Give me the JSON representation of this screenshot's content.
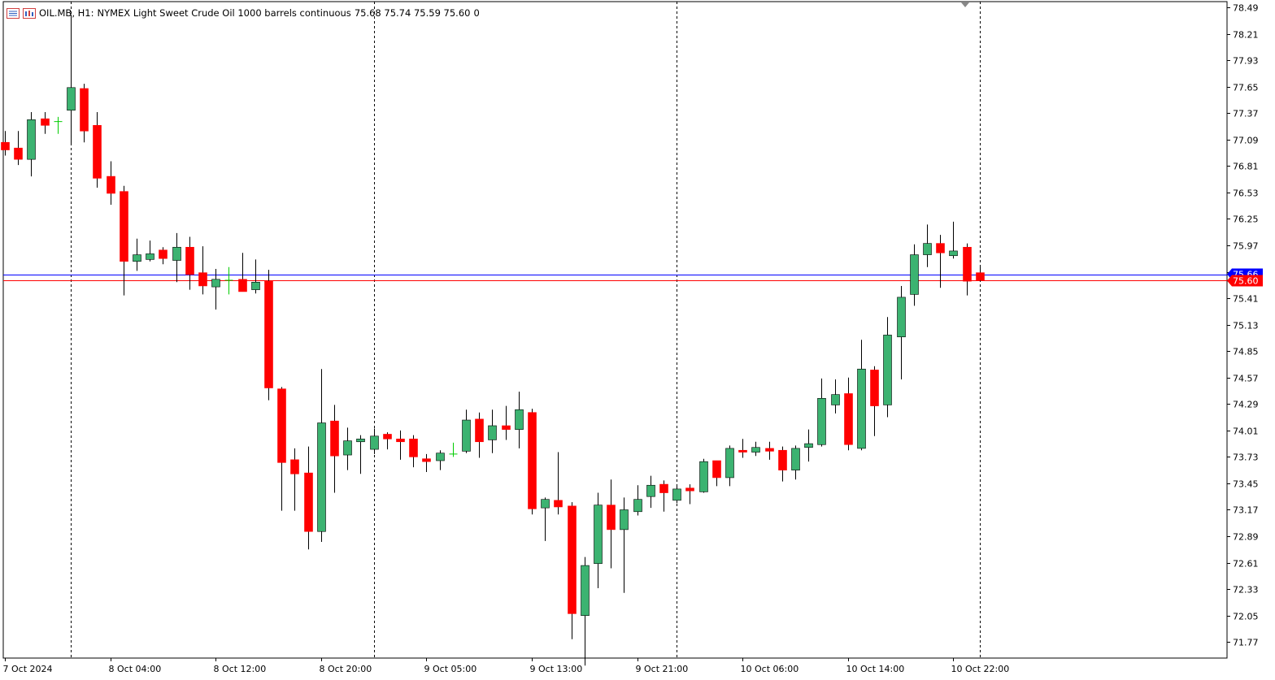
{
  "header": {
    "symbol": "OIL.MB, H1:",
    "description": "NYMEX Light Sweet Crude Oil 1000 barrels continuous",
    "ohlc": "75.68 75.74 75.59 75.60",
    "tick_volume": "0",
    "icons": [
      "chart-list-icon",
      "chart-window-icon"
    ]
  },
  "colors": {
    "bull": "#3cb371",
    "bear": "#ff0000",
    "doji": "#00cc00",
    "ask_line": "#0000ff",
    "bid_line": "#ff0000",
    "grid_divider": "#000000",
    "background": "#ffffff"
  },
  "chart_data": {
    "type": "candlestick",
    "timeframe": "H1",
    "title": "OIL.MB, H1:  NYMEX Light Sweet Crude Oil 1000 barrels continuous",
    "ylim": [
      71.6,
      78.55
    ],
    "y_ticks": [
      "78.49",
      "78.21",
      "77.93",
      "77.65",
      "77.37",
      "77.09",
      "76.81",
      "76.53",
      "76.25",
      "75.97",
      "75.69",
      "75.41",
      "75.13",
      "74.85",
      "74.57",
      "74.29",
      "74.01",
      "73.73",
      "73.45",
      "73.17",
      "72.89",
      "72.61",
      "72.33",
      "72.05",
      "71.77"
    ],
    "x_labels": [
      {
        "bar": 0,
        "text": "7 Oct 2024"
      },
      {
        "bar": 8,
        "text": "8 Oct 04:00"
      },
      {
        "bar": 16,
        "text": "8 Oct 12:00"
      },
      {
        "bar": 24,
        "text": "8 Oct 20:00"
      },
      {
        "bar": 32,
        "text": "9 Oct 05:00"
      },
      {
        "bar": 40,
        "text": "9 Oct 13:00"
      },
      {
        "bar": 48,
        "text": "9 Oct 21:00"
      },
      {
        "bar": 56,
        "text": "10 Oct 06:00"
      },
      {
        "bar": 64,
        "text": "10 Oct 14:00"
      },
      {
        "bar": 72,
        "text": "10 Oct 22:00"
      }
    ],
    "day_separators": [
      5,
      28,
      51,
      74
    ],
    "bid_price": 75.6,
    "bid_label": "75.60",
    "ask_price": 75.66,
    "ask_label": "75.66",
    "candles": [
      {
        "o": 77.06,
        "h": 77.18,
        "l": 76.92,
        "c": 76.98
      },
      {
        "o": 77.0,
        "h": 77.18,
        "l": 76.82,
        "c": 76.88
      },
      {
        "o": 76.88,
        "h": 77.38,
        "l": 76.7,
        "c": 77.3
      },
      {
        "o": 77.31,
        "h": 77.38,
        "l": 77.15,
        "c": 77.24
      },
      {
        "o": 77.28,
        "h": 77.33,
        "l": 77.15,
        "c": 77.28
      },
      {
        "o": 77.4,
        "h": 78.41,
        "l": 77.04,
        "c": 77.64
      },
      {
        "o": 77.63,
        "h": 77.68,
        "l": 77.06,
        "c": 77.18
      },
      {
        "o": 77.24,
        "h": 77.38,
        "l": 76.58,
        "c": 76.68
      },
      {
        "o": 76.7,
        "h": 76.86,
        "l": 76.4,
        "c": 76.52
      },
      {
        "o": 76.54,
        "h": 76.6,
        "l": 75.44,
        "c": 75.8
      },
      {
        "o": 75.8,
        "h": 76.04,
        "l": 75.7,
        "c": 75.87
      },
      {
        "o": 75.82,
        "h": 76.02,
        "l": 75.8,
        "c": 75.88
      },
      {
        "o": 75.92,
        "h": 75.95,
        "l": 75.77,
        "c": 75.83
      },
      {
        "o": 75.81,
        "h": 76.1,
        "l": 75.58,
        "c": 75.95
      },
      {
        "o": 75.95,
        "h": 76.06,
        "l": 75.5,
        "c": 75.66
      },
      {
        "o": 75.68,
        "h": 75.96,
        "l": 75.45,
        "c": 75.54
      },
      {
        "o": 75.53,
        "h": 75.72,
        "l": 75.29,
        "c": 75.61
      },
      {
        "o": 75.6,
        "h": 75.74,
        "l": 75.45,
        "c": 75.6
      },
      {
        "o": 75.61,
        "h": 75.89,
        "l": 75.48,
        "c": 75.48
      },
      {
        "o": 75.5,
        "h": 75.82,
        "l": 75.46,
        "c": 75.58
      },
      {
        "o": 75.59,
        "h": 75.71,
        "l": 74.33,
        "c": 74.46
      },
      {
        "o": 74.45,
        "h": 74.47,
        "l": 73.16,
        "c": 73.67
      },
      {
        "o": 73.7,
        "h": 73.82,
        "l": 73.16,
        "c": 73.55
      },
      {
        "o": 73.56,
        "h": 73.84,
        "l": 72.75,
        "c": 72.94
      },
      {
        "o": 72.94,
        "h": 74.66,
        "l": 72.83,
        "c": 74.09
      },
      {
        "o": 74.11,
        "h": 74.28,
        "l": 73.35,
        "c": 73.74
      },
      {
        "o": 73.75,
        "h": 74.04,
        "l": 73.59,
        "c": 73.9
      },
      {
        "o": 73.89,
        "h": 73.96,
        "l": 73.55,
        "c": 73.92
      },
      {
        "o": 73.81,
        "h": 74.03,
        "l": 73.76,
        "c": 73.95
      },
      {
        "o": 73.97,
        "h": 73.99,
        "l": 73.81,
        "c": 73.92
      },
      {
        "o": 73.92,
        "h": 74.01,
        "l": 73.7,
        "c": 73.89
      },
      {
        "o": 73.92,
        "h": 73.96,
        "l": 73.62,
        "c": 73.73
      },
      {
        "o": 73.71,
        "h": 73.76,
        "l": 73.57,
        "c": 73.68
      },
      {
        "o": 73.69,
        "h": 73.8,
        "l": 73.59,
        "c": 73.77
      },
      {
        "o": 73.76,
        "h": 73.88,
        "l": 73.73,
        "c": 73.76
      },
      {
        "o": 73.79,
        "h": 74.23,
        "l": 73.77,
        "c": 74.12
      },
      {
        "o": 74.13,
        "h": 74.2,
        "l": 73.72,
        "c": 73.89
      },
      {
        "o": 73.91,
        "h": 74.23,
        "l": 73.77,
        "c": 74.06
      },
      {
        "o": 74.06,
        "h": 74.27,
        "l": 73.91,
        "c": 74.02
      },
      {
        "o": 74.02,
        "h": 74.42,
        "l": 73.82,
        "c": 74.23
      },
      {
        "o": 74.2,
        "h": 74.24,
        "l": 73.12,
        "c": 73.18
      },
      {
        "o": 73.19,
        "h": 73.3,
        "l": 72.84,
        "c": 73.28
      },
      {
        "o": 73.27,
        "h": 73.78,
        "l": 73.12,
        "c": 73.2
      },
      {
        "o": 73.21,
        "h": 73.25,
        "l": 71.8,
        "c": 72.07
      },
      {
        "o": 72.05,
        "h": 72.67,
        "l": 71.52,
        "c": 72.58
      },
      {
        "o": 72.6,
        "h": 73.35,
        "l": 72.34,
        "c": 73.22
      },
      {
        "o": 73.22,
        "h": 73.49,
        "l": 72.55,
        "c": 72.96
      },
      {
        "o": 72.96,
        "h": 73.3,
        "l": 72.29,
        "c": 73.17
      },
      {
        "o": 73.15,
        "h": 73.43,
        "l": 73.11,
        "c": 73.28
      },
      {
        "o": 73.31,
        "h": 73.53,
        "l": 73.19,
        "c": 73.43
      },
      {
        "o": 73.44,
        "h": 73.48,
        "l": 73.15,
        "c": 73.35
      },
      {
        "o": 73.27,
        "h": 73.43,
        "l": 73.24,
        "c": 73.39
      },
      {
        "o": 73.4,
        "h": 73.44,
        "l": 73.23,
        "c": 73.37
      },
      {
        "o": 73.36,
        "h": 73.71,
        "l": 73.35,
        "c": 73.68
      },
      {
        "o": 73.69,
        "h": 73.69,
        "l": 73.42,
        "c": 73.51
      },
      {
        "o": 73.51,
        "h": 73.85,
        "l": 73.42,
        "c": 73.82
      },
      {
        "o": 73.8,
        "h": 73.92,
        "l": 73.72,
        "c": 73.78
      },
      {
        "o": 73.78,
        "h": 73.89,
        "l": 73.74,
        "c": 73.83
      },
      {
        "o": 73.82,
        "h": 73.89,
        "l": 73.7,
        "c": 73.79
      },
      {
        "o": 73.8,
        "h": 73.84,
        "l": 73.47,
        "c": 73.59
      },
      {
        "o": 73.59,
        "h": 73.85,
        "l": 73.49,
        "c": 73.82
      },
      {
        "o": 73.83,
        "h": 74.02,
        "l": 73.68,
        "c": 73.87
      },
      {
        "o": 73.86,
        "h": 74.56,
        "l": 73.84,
        "c": 74.35
      },
      {
        "o": 74.28,
        "h": 74.55,
        "l": 74.19,
        "c": 74.39
      },
      {
        "o": 74.4,
        "h": 74.57,
        "l": 73.8,
        "c": 73.86
      },
      {
        "o": 73.82,
        "h": 74.97,
        "l": 73.8,
        "c": 74.66
      },
      {
        "o": 74.65,
        "h": 74.69,
        "l": 73.95,
        "c": 74.27
      },
      {
        "o": 74.28,
        "h": 75.21,
        "l": 74.15,
        "c": 75.02
      },
      {
        "o": 75.0,
        "h": 75.54,
        "l": 74.55,
        "c": 75.42
      },
      {
        "o": 75.45,
        "h": 75.98,
        "l": 75.33,
        "c": 75.87
      },
      {
        "o": 75.87,
        "h": 76.19,
        "l": 75.74,
        "c": 75.99
      },
      {
        "o": 75.99,
        "h": 76.08,
        "l": 75.52,
        "c": 75.89
      },
      {
        "o": 75.86,
        "h": 76.22,
        "l": 75.83,
        "c": 75.91
      },
      {
        "o": 75.95,
        "h": 75.99,
        "l": 75.44,
        "c": 75.59
      },
      {
        "o": 75.68,
        "h": 75.74,
        "l": 75.59,
        "c": 75.6
      }
    ]
  }
}
